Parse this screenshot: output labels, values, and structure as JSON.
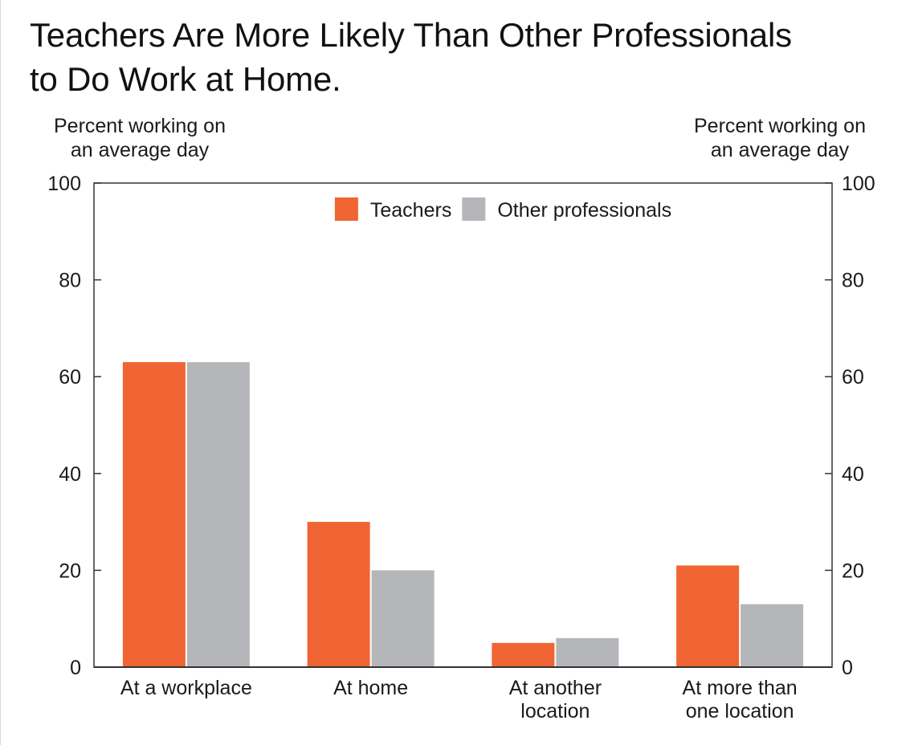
{
  "chart_title": {
    "line1": "Teachers Are More Likely Than Other Professionals",
    "line2": "to Do Work at Home."
  },
  "chart_data": {
    "type": "bar",
    "title": "Teachers Are More Likely Than Other Professionals to Do Work at Home.",
    "categories": [
      [
        "At a workplace"
      ],
      [
        "At home"
      ],
      [
        "At another",
        "location"
      ],
      [
        "At more than",
        "one location"
      ]
    ],
    "series": [
      {
        "name": "Teachers",
        "color": "#f06533",
        "values": [
          63,
          30,
          5,
          21
        ]
      },
      {
        "name": "Other professionals",
        "color": "#b5b6ba",
        "values": [
          63,
          20,
          6,
          13
        ]
      }
    ],
    "ylabel_left": [
      "Percent working on",
      "an average day"
    ],
    "ylabel_right": [
      "Percent working on",
      "an average day"
    ],
    "ylim": [
      0,
      100
    ],
    "yticks": [
      0,
      20,
      40,
      60,
      80,
      100
    ],
    "grid": false,
    "legend_position": "top-center",
    "axis_color": "#333333"
  }
}
